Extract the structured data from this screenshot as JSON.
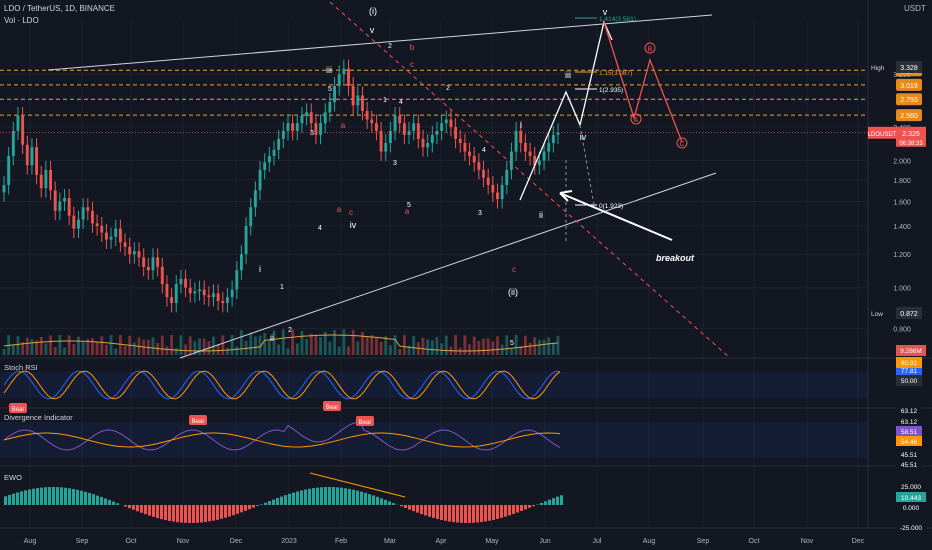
{
  "header": {
    "symbol": "LDO / TetherUS, 1D, BINANCE",
    "volume_label": "Vol · LDO",
    "currency": "USDT"
  },
  "chart_data": {
    "type": "candlestick",
    "x_axis_ticks": [
      "Aug",
      "Sep",
      "Oct",
      "Nov",
      "Dec",
      "2023",
      "Feb",
      "Mar",
      "Apr",
      "May",
      "Jun",
      "Jul",
      "Aug",
      "Sep",
      "Oct",
      "Nov",
      "Dec"
    ],
    "price_axis": {
      "scale": "log",
      "range": [
        0.72,
        4.3
      ],
      "ticks": [
        "3.200",
        "2.400",
        "2.000",
        "1.800",
        "1.600",
        "1.400",
        "1.200",
        "1.000",
        "0.800"
      ],
      "high_label": "High",
      "high_value": "3.328",
      "low_label": "Low",
      "low_value": "0.872",
      "current_label": "LDOUSDT",
      "current_value": "2.326",
      "countdown": "06:38:33"
    },
    "fib_levels": [
      {
        "label": "3.270",
        "price": 3.27
      },
      {
        "label": "3.019",
        "price": 3.019
      },
      {
        "label": "2.793",
        "price": 2.793
      },
      {
        "label": "2.560",
        "price": 2.56
      }
    ],
    "projection_labels": [
      "1.414(3.561)",
      "1.15(3.087)",
      "1(2.935)",
      "0(1.923)"
    ],
    "breakout_label": "breakout",
    "wave_labels": {
      "major": [
        "(i)",
        "(ii)"
      ],
      "minor": [
        "i",
        "ii",
        "iii",
        "iv",
        "v"
      ],
      "numbers": [
        "1",
        "2",
        "3",
        "4",
        "5"
      ],
      "abc": [
        "a",
        "b",
        "c"
      ],
      "circled": [
        "A",
        "B",
        "C"
      ]
    },
    "closes": [
      1.75,
      2.05,
      2.35,
      2.55,
      2.18,
      1.95,
      2.15,
      1.85,
      1.72,
      1.9,
      1.7,
      1.52,
      1.6,
      1.63,
      1.48,
      1.38,
      1.45,
      1.55,
      1.52,
      1.42,
      1.4,
      1.35,
      1.3,
      1.32,
      1.38,
      1.28,
      1.25,
      1.2,
      1.22,
      1.18,
      1.12,
      1.1,
      1.18,
      1.12,
      1.02,
      0.95,
      0.92,
      1.02,
      1.05,
      1.0,
      0.97,
      0.98,
      0.99,
      0.96,
      0.95,
      0.97,
      0.93,
      0.92,
      0.95,
      0.99,
      1.1,
      1.2,
      1.4,
      1.55,
      1.7,
      1.9,
      1.98,
      2.05,
      2.12,
      2.25,
      2.35,
      2.45,
      2.35,
      2.45,
      2.55,
      2.6,
      2.45,
      2.3,
      2.45,
      2.6,
      2.75,
      3.0,
      3.2,
      3.3,
      3.0,
      2.7,
      2.85,
      2.62,
      2.5,
      2.45,
      2.35,
      2.1,
      2.2,
      2.35,
      2.55,
      2.45,
      2.3,
      2.35,
      2.45,
      2.25,
      2.15,
      2.2,
      2.3,
      2.35,
      2.45,
      2.5,
      2.4,
      2.25,
      2.2,
      2.1,
      2.05,
      1.98,
      1.9,
      1.82,
      1.75,
      1.68,
      1.62,
      1.75,
      1.9,
      2.1,
      2.35,
      2.2,
      2.1,
      2.05,
      1.95,
      2.0,
      2.1,
      2.2,
      2.3,
      2.33
    ],
    "indicators": [
      {
        "name": "Stoch RSI",
        "values": [
          "77.81",
          "80.91",
          "50.00"
        ]
      },
      {
        "name": "Divergence Indicator",
        "values": [
          "63.12",
          "63.12",
          "58.51",
          "54.46",
          "45.51",
          "45.51"
        ],
        "signals": [
          "Bear",
          "Bear",
          "Bear",
          "Bear",
          "Bear"
        ]
      },
      {
        "name": "EWO",
        "values": [
          "25.000",
          "10.443",
          "0.000",
          "-25.000"
        ]
      }
    ],
    "volume_value": "9.286M"
  }
}
